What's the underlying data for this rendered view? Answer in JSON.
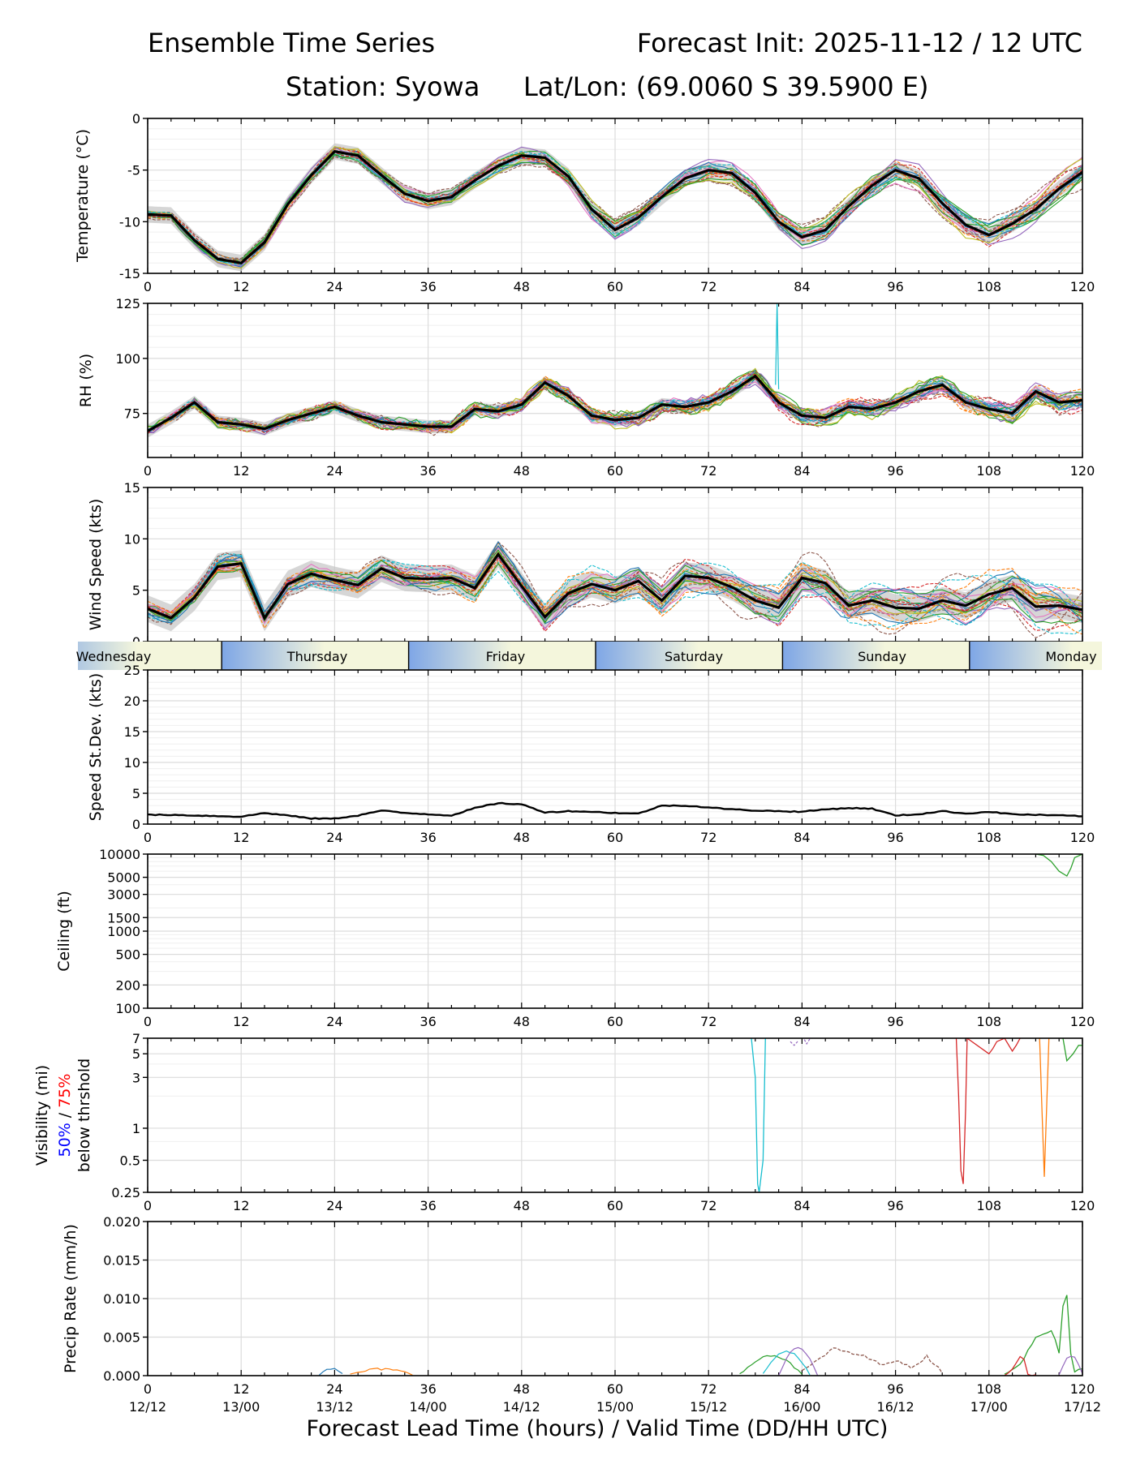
{
  "header": {
    "title": "Ensemble Time Series",
    "init": "Forecast Init: 2025-11-12 / 12 UTC",
    "station": "Station: Syowa",
    "latlon": "Lat/Lon: (69.0060 S 39.5900 E)"
  },
  "xaxis": {
    "lead_ticks": [
      "0",
      "12",
      "24",
      "36",
      "48",
      "60",
      "72",
      "84",
      "96",
      "108",
      "120"
    ],
    "valid_ticks": [
      "12/12",
      "13/00",
      "13/12",
      "14/00",
      "14/12",
      "15/00",
      "15/12",
      "16/00",
      "16/12",
      "17/00",
      "17/12"
    ],
    "label": "Forecast Lead Time (hours) / Valid Time (DD/HH UTC)",
    "range": [
      0,
      120
    ]
  },
  "days": {
    "labels": [
      "Wednesday",
      "Thursday",
      "Friday",
      "Saturday",
      "Sunday",
      "Monday"
    ],
    "boundaries_hours": [
      9.5,
      33.5,
      57.5,
      81.5,
      105.5
    ]
  },
  "colors": {
    "mean": "#000000",
    "spread": "#c8c8c8",
    "members": [
      "#1f77b4",
      "#ff7f0e",
      "#2ca02c",
      "#d62728",
      "#9467bd",
      "#8c564b",
      "#e377c2",
      "#7f7f7f",
      "#bcbd22",
      "#17becf"
    ],
    "day_blue": "#7ea6e6",
    "day_cream": "#f4f6dc",
    "vis_50": "#0000ff",
    "vis_75": "#ff0000"
  },
  "panels": {
    "temperature": {
      "ylabel": "Temperature (°C)",
      "yticks": [
        "0",
        "-5",
        "-10",
        "-15"
      ]
    },
    "rh": {
      "ylabel": "RH (%)",
      "yticks": [
        "125",
        "100",
        "75"
      ]
    },
    "wind": {
      "ylabel": "Wind Speed (kts)",
      "yticks": [
        "15",
        "10",
        "5",
        "0"
      ]
    },
    "stdev": {
      "ylabel": "Speed St.Dev. (kts)",
      "yticks": [
        "25",
        "20",
        "15",
        "10",
        "5",
        "0"
      ]
    },
    "ceiling": {
      "ylabel": "Ceiling (ft)",
      "yticks": [
        "10000",
        "5000",
        "3000",
        "1500",
        "1000",
        "500",
        "200",
        "100"
      ]
    },
    "visibility": {
      "ylabel_a": "Visibility (mi)",
      "ylabel_50": "50%",
      "ylabel_sep": " / ",
      "ylabel_75": "75%",
      "ylabel_b": "below thrshold",
      "yticks": [
        "7",
        "5",
        "3",
        "1",
        "0.5",
        "0.25"
      ]
    },
    "precip": {
      "ylabel": "Precip Rate (mm/h)",
      "yticks": [
        "0.020",
        "0.015",
        "0.010",
        "0.005",
        "0.000"
      ]
    }
  },
  "chart_data": [
    {
      "type": "line",
      "title": "Temperature",
      "ylabel": "Temperature (°C)",
      "ylim": [
        -15,
        0
      ],
      "series": [
        {
          "name": "ensemble mean",
          "x": [
            0,
            3,
            6,
            9,
            12,
            15,
            18,
            21,
            24,
            27,
            30,
            33,
            36,
            39,
            42,
            45,
            48,
            51,
            54,
            57,
            60,
            63,
            66,
            69,
            72,
            75,
            78,
            81,
            84,
            87,
            90,
            93,
            96,
            99,
            102,
            105,
            108,
            111,
            114,
            117,
            120
          ],
          "values": [
            -9.3,
            -9.4,
            -11.8,
            -13.6,
            -14,
            -12,
            -8.3,
            -5.5,
            -3.2,
            -3.6,
            -5.5,
            -7.3,
            -8,
            -7.6,
            -6,
            -4.6,
            -3.6,
            -3.8,
            -5.6,
            -8.8,
            -10.8,
            -9.6,
            -7.6,
            -5.8,
            -5,
            -5.3,
            -7.2,
            -10,
            -11.5,
            -10.8,
            -8.5,
            -6.5,
            -5,
            -5.8,
            -8.2,
            -10.3,
            -11.3,
            -10.2,
            -8.8,
            -6.8,
            -5.2
          ]
        }
      ]
    },
    {
      "type": "line",
      "title": "RH",
      "ylabel": "RH (%)",
      "ylim": [
        55,
        125
      ],
      "series": [
        {
          "name": "ensemble mean",
          "x": [
            0,
            3,
            6,
            9,
            12,
            15,
            18,
            21,
            24,
            27,
            30,
            33,
            36,
            39,
            42,
            45,
            48,
            51,
            54,
            57,
            60,
            63,
            66,
            69,
            72,
            75,
            78,
            81,
            84,
            87,
            90,
            93,
            96,
            99,
            102,
            105,
            108,
            111,
            114,
            117,
            120
          ],
          "values": [
            67,
            73,
            80,
            71,
            70,
            68,
            72,
            75,
            78,
            74,
            71,
            70,
            69,
            69,
            77,
            76,
            79,
            89,
            83,
            74,
            72,
            73,
            79,
            78,
            80,
            85,
            92,
            80,
            74,
            73,
            78,
            77,
            80,
            85,
            88,
            80,
            77,
            75,
            85,
            80,
            81
          ]
        }
      ]
    },
    {
      "type": "line",
      "title": "Wind Speed",
      "ylabel": "Wind Speed (kts)",
      "ylim": [
        0,
        15
      ],
      "series": [
        {
          "name": "ensemble mean",
          "x": [
            0,
            3,
            6,
            9,
            12,
            15,
            18,
            21,
            24,
            27,
            30,
            33,
            36,
            39,
            42,
            45,
            48,
            51,
            54,
            57,
            60,
            63,
            66,
            69,
            72,
            75,
            78,
            81,
            84,
            87,
            90,
            93,
            96,
            99,
            102,
            105,
            108,
            111,
            114,
            117,
            120
          ],
          "values": [
            3.2,
            2.3,
            4.3,
            7.3,
            7.6,
            2.3,
            5.6,
            6.6,
            6,
            5.5,
            7.1,
            6.2,
            6.1,
            6.2,
            5.2,
            8.5,
            5.4,
            2.4,
            4.7,
            5.6,
            5,
            5.9,
            4,
            6.4,
            6.2,
            5.3,
            4,
            3.3,
            6.2,
            5.7,
            3.5,
            4,
            3.3,
            3.2,
            4,
            3.5,
            4.6,
            5.2,
            3.4,
            3.5,
            3.1
          ]
        }
      ]
    },
    {
      "type": "line",
      "title": "Speed St.Dev.",
      "ylabel": "Speed St.Dev. (kts)",
      "ylim": [
        0,
        25
      ],
      "series": [
        {
          "name": "std dev",
          "x": [
            0,
            3,
            6,
            9,
            12,
            15,
            18,
            21,
            24,
            27,
            30,
            33,
            36,
            39,
            42,
            45,
            48,
            51,
            54,
            57,
            60,
            63,
            66,
            69,
            72,
            75,
            78,
            81,
            84,
            87,
            90,
            93,
            96,
            99,
            102,
            105,
            108,
            111,
            114,
            117,
            120
          ],
          "values": [
            1.5,
            1.5,
            1.4,
            1.3,
            1.2,
            1.8,
            1.4,
            0.9,
            0.9,
            1.4,
            2.2,
            1.8,
            1.6,
            1.4,
            2.6,
            3.4,
            3.2,
            1.9,
            2.1,
            2,
            1.8,
            1.7,
            3,
            3,
            2.7,
            2.4,
            2.2,
            2.1,
            2,
            2.4,
            2.6,
            2.5,
            1.4,
            1.6,
            2.1,
            1.7,
            2,
            1.6,
            1.5,
            1.4,
            1.3
          ]
        }
      ]
    },
    {
      "type": "line",
      "title": "Ceiling",
      "ylabel": "Ceiling (ft)",
      "ylim": [
        100,
        10000
      ],
      "series": [
        {
          "name": "member",
          "x": [
            114,
            115,
            116,
            117,
            118,
            118.5,
            119,
            120
          ],
          "values": [
            10000,
            9600,
            8000,
            6000,
            5200,
            6500,
            9000,
            10000
          ]
        }
      ]
    },
    {
      "type": "line",
      "title": "Visibility",
      "ylabel": "Visibility (mi) 50% / 75% below thrshold",
      "ylim": [
        0.25,
        7
      ],
      "series": [
        {
          "name": "member cyan",
          "x": [
            77.5,
            78,
            78.3,
            78.5,
            79,
            79.3
          ],
          "values": [
            7,
            3,
            0.3,
            0.25,
            0.5,
            7
          ]
        },
        {
          "name": "member red",
          "x": [
            103.8,
            104.1,
            104.4,
            104.7,
            105,
            105.2,
            108,
            108.5,
            109,
            110,
            111,
            111.5,
            112
          ],
          "values": [
            7,
            2,
            0.4,
            0.3,
            1.5,
            7,
            5,
            5.6,
            6.5,
            7,
            5.3,
            6,
            7
          ]
        },
        {
          "name": "member orange",
          "x": [
            114.5,
            114.8,
            115.1,
            115.4,
            115.7
          ],
          "values": [
            7,
            1.5,
            0.35,
            1.5,
            7
          ]
        },
        {
          "name": "member green",
          "x": [
            117.5,
            118,
            118.8,
            119.5,
            120
          ],
          "values": [
            7,
            4.3,
            5,
            6,
            6
          ]
        }
      ]
    },
    {
      "type": "line",
      "title": "Precip Rate",
      "ylabel": "Precip Rate (mm/h)",
      "ylim": [
        0,
        0.02
      ],
      "series": [
        {
          "name": "member green",
          "x": [
            110,
            112,
            114,
            115,
            116,
            117,
            117.5,
            118,
            118.5,
            119,
            120
          ],
          "values": [
            0,
            0.0015,
            0.005,
            0.0055,
            0.006,
            0.003,
            0.009,
            0.0105,
            0.003,
            0.0005,
            0.001
          ]
        },
        {
          "name": "member brown",
          "x": [
            84,
            86,
            88,
            90,
            92,
            94,
            96,
            98,
            100,
            102
          ],
          "values": [
            0.0005,
            0.002,
            0.0035,
            0.003,
            0.0025,
            0.0015,
            0.002,
            0.001,
            0.0025,
            0.0005
          ]
        },
        {
          "name": "member red",
          "x": [
            110,
            111,
            112,
            112.5,
            113,
            114
          ],
          "values": [
            0,
            0.001,
            0.0025,
            0.002,
            0,
            0
          ]
        }
      ]
    }
  ]
}
